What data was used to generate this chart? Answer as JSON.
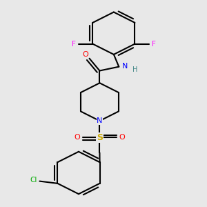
{
  "background_color": "#e8e8e8",
  "bond_color": "#000000",
  "figsize": [
    3.0,
    3.0
  ],
  "dpi": 100,
  "colors": {
    "N": "#0000ff",
    "O": "#ff0000",
    "S": "#ccaa00",
    "F": "#ff00ff",
    "Cl": "#00aa00",
    "H": "#448888",
    "C": "#000000"
  }
}
